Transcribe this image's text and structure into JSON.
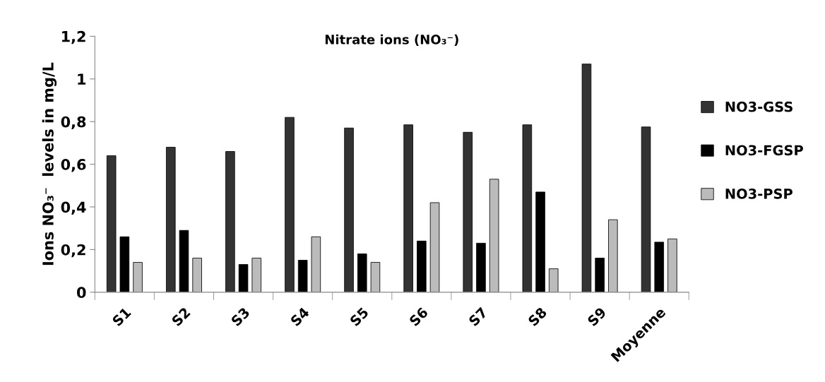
{
  "chart_data": {
    "type": "bar",
    "title": "Nitrate ions (NO₃⁻)",
    "ylabel": "Ions NO₃⁻  levels in mg/L",
    "categories": [
      "S1",
      "S2",
      "S3",
      "S4",
      "S5",
      "S6",
      "S7",
      "S8",
      "S9",
      "Moyenne"
    ],
    "series": [
      {
        "name": "NO3-GSS",
        "color": "#333333",
        "values": [
          0.64,
          0.68,
          0.66,
          0.82,
          0.77,
          0.785,
          0.75,
          0.785,
          1.07,
          0.775
        ]
      },
      {
        "name": "NO3-FGSP",
        "color": "#000000",
        "values": [
          0.26,
          0.29,
          0.13,
          0.15,
          0.18,
          0.24,
          0.23,
          0.47,
          0.16,
          0.235
        ]
      },
      {
        "name": "NO3-PSP",
        "color": "#bbbbbb",
        "values": [
          0.14,
          0.16,
          0.16,
          0.26,
          0.14,
          0.42,
          0.53,
          0.11,
          0.34,
          0.25
        ]
      }
    ],
    "ylim": [
      0,
      1.2
    ],
    "yticks": [
      0,
      {
        "value": 0.2,
        "label": "0,2"
      },
      {
        "value": 0.4,
        "label": "0,4"
      },
      {
        "value": 0.6,
        "label": "0,6"
      },
      {
        "value": 0.8,
        "label": "0,8"
      },
      1,
      {
        "value": 1.2,
        "label": "1,2"
      }
    ],
    "grid": false,
    "legend": "right"
  }
}
